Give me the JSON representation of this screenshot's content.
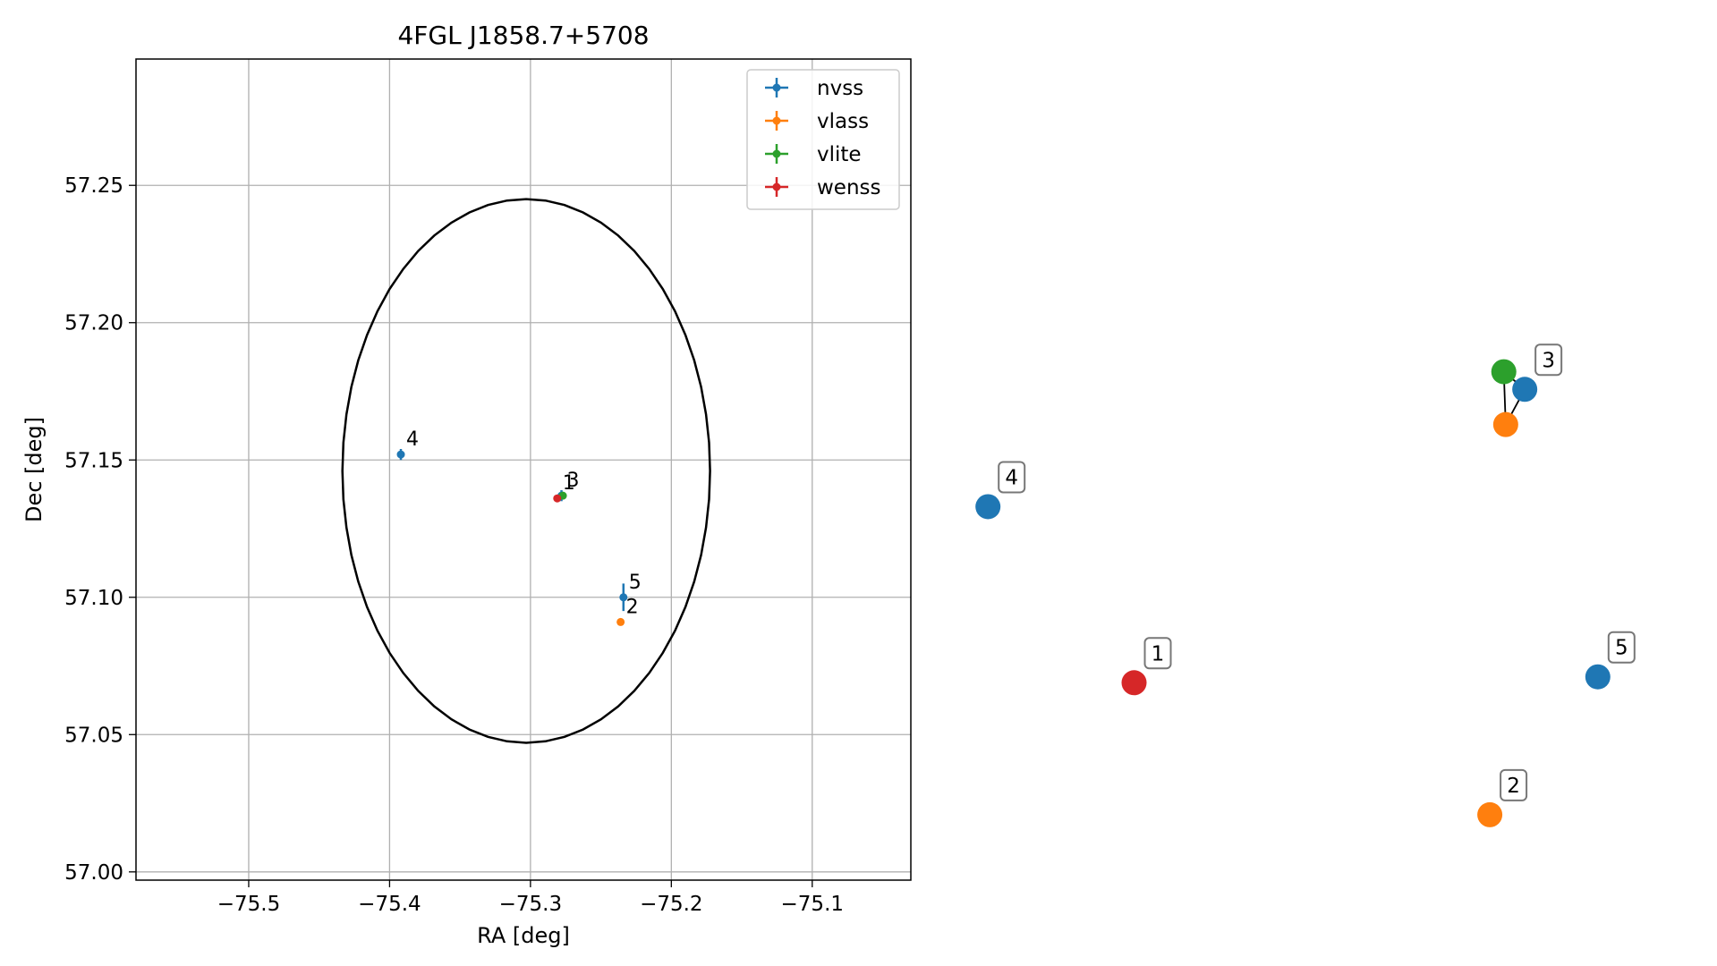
{
  "chart_data": [
    {
      "type": "scatter",
      "title": "4FGL J1858.7+5708",
      "xlabel": "RA [deg]",
      "ylabel": "Dec [deg]",
      "xlim": [
        -75.58,
        -75.03
      ],
      "ylim": [
        56.997,
        57.296
      ],
      "xticks": [
        -75.5,
        -75.4,
        -75.3,
        -75.2,
        -75.1
      ],
      "xtick_labels": [
        "−75.5",
        "−75.4",
        "−75.3",
        "−75.2",
        "−75.1"
      ],
      "yticks": [
        57.0,
        57.05,
        57.1,
        57.15,
        57.2,
        57.25
      ],
      "ytick_labels": [
        "57.00",
        "57.05",
        "57.10",
        "57.15",
        "57.20",
        "57.25"
      ],
      "grid": true,
      "legend": "top-right",
      "ellipse": {
        "center": [
          -75.303,
          57.146
        ],
        "semi_ra": 0.1305,
        "semi_dec": 0.099
      },
      "series": [
        {
          "name": "nvss",
          "color": "#1f77b4",
          "points": [
            {
              "x": -75.392,
              "y": 57.152,
              "yerr": 0.002,
              "label": "4"
            },
            {
              "x": -75.278,
              "y": 57.137,
              "yerr": 0.002,
              "label": "3"
            },
            {
              "x": -75.234,
              "y": 57.1,
              "yerr": 0.005,
              "label": "5"
            }
          ]
        },
        {
          "name": "vlass",
          "color": "#ff7f0e",
          "points": [
            {
              "x": -75.236,
              "y": 57.091,
              "yerr": 0.001,
              "label": "2"
            }
          ]
        },
        {
          "name": "vlite",
          "color": "#2ca02c",
          "points": [
            {
              "x": -75.277,
              "y": 57.137,
              "yerr": 0.001,
              "label": ""
            }
          ]
        },
        {
          "name": "wenss",
          "color": "#d62728",
          "points": [
            {
              "x": -75.281,
              "y": 57.136,
              "yerr": 0.001,
              "label": "1"
            }
          ]
        }
      ]
    },
    {
      "type": "network",
      "nodes": [
        {
          "id": "n3",
          "color": "#1f77b4",
          "x": 0.865,
          "y": 0.745,
          "label": "3"
        },
        {
          "id": "v3",
          "color": "#ff7f0e",
          "x": 0.835,
          "y": 0.685,
          "label": ""
        },
        {
          "id": "l3",
          "color": "#2ca02c",
          "x": 0.832,
          "y": 0.775,
          "label": ""
        },
        {
          "id": "n4",
          "color": "#1f77b4",
          "x": 0.02,
          "y": 0.545,
          "label": "4"
        },
        {
          "id": "w1",
          "color": "#d62728",
          "x": 0.25,
          "y": 0.245,
          "label": "1"
        },
        {
          "id": "n5",
          "color": "#1f77b4",
          "x": 0.98,
          "y": 0.255,
          "label": "5"
        },
        {
          "id": "v2",
          "color": "#ff7f0e",
          "x": 0.81,
          "y": 0.02,
          "label": "2"
        }
      ],
      "edges": [
        [
          "l3",
          "n3"
        ],
        [
          "l3",
          "v3"
        ],
        [
          "n3",
          "v3"
        ]
      ]
    }
  ]
}
